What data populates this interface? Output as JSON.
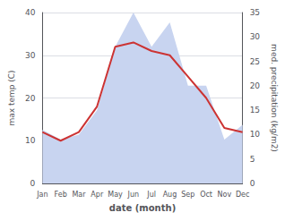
{
  "chart_data": {
    "type": "line",
    "categories": [
      "Jan",
      "Feb",
      "Mar",
      "Apr",
      "May",
      "Jun",
      "Jul",
      "Aug",
      "Sep",
      "Oct",
      "Nov",
      "Dec"
    ],
    "xlabel": "date (month)",
    "ylabel": "max temp (C)",
    "y2label": "med. precipitation (kg/m2)",
    "series": [
      {
        "type": "area",
        "color": "#c8d4f0",
        "axis": "y2",
        "values": [
          11,
          9,
          10,
          15,
          28,
          35,
          28,
          33,
          20,
          20,
          9,
          12
        ]
      },
      {
        "type": "line",
        "color": "#cc3333",
        "values": [
          12,
          10,
          12,
          18,
          32,
          33,
          31,
          30,
          25,
          20,
          13,
          12
        ]
      }
    ],
    "ylim": [
      0,
      40
    ],
    "yticks": [
      0,
      10,
      20,
      30,
      40
    ],
    "y2lim": [
      0,
      35
    ],
    "y2ticks": [
      0,
      5,
      10,
      15,
      20,
      25,
      30,
      35
    ],
    "grid": true
  }
}
